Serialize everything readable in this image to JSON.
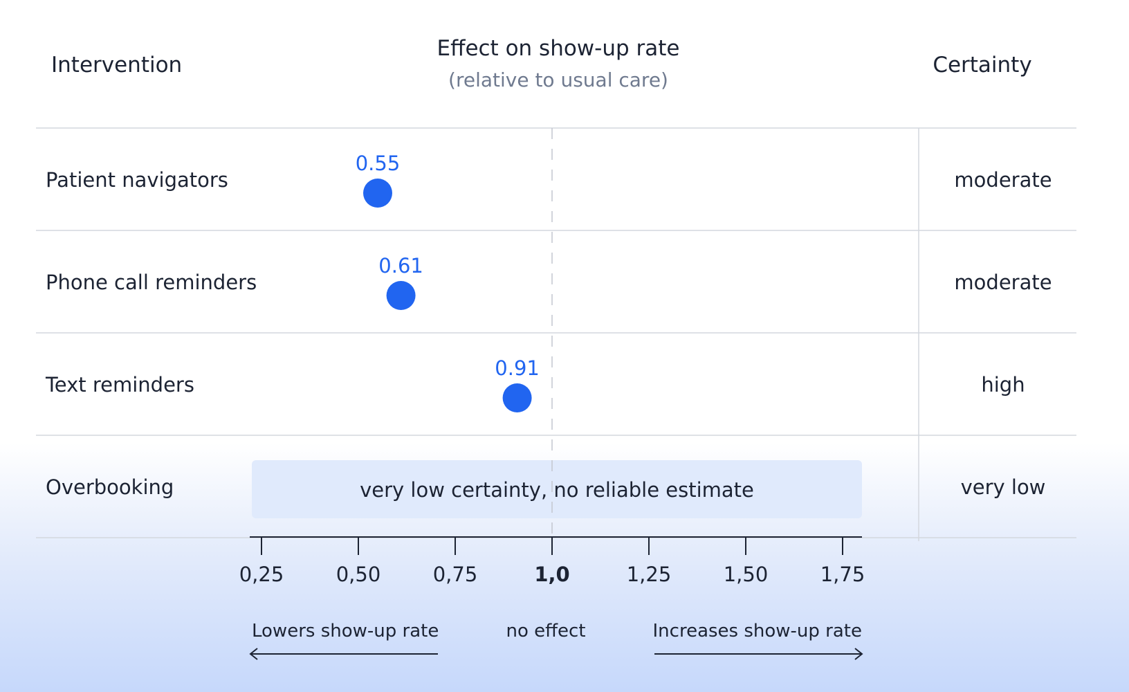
{
  "colors": {
    "text": "#1c2333",
    "muted": "#6f7a8f",
    "accent": "#2165f0",
    "grid": "#d4d7de",
    "band": "#e0eafc"
  },
  "headers": {
    "intervention": "Intervention",
    "effect": "Effect on show-up rate",
    "effect_sub": "(relative to usual care)",
    "certainty": "Certainty"
  },
  "chart_data": {
    "type": "scatter",
    "xlim": [
      0.2,
      1.8
    ],
    "reference_line": 1.0,
    "x_ticks": [
      {
        "value": 0.25,
        "label": "0,25"
      },
      {
        "value": 0.5,
        "label": "0,50"
      },
      {
        "value": 0.75,
        "label": "0,75"
      },
      {
        "value": 1.0,
        "label": "1,0",
        "bold": true
      },
      {
        "value": 1.25,
        "label": "1,25"
      },
      {
        "value": 1.5,
        "label": "1,50"
      },
      {
        "value": 1.75,
        "label": "1,75"
      }
    ],
    "rows": [
      {
        "intervention": "Patient navigators",
        "value": 0.55,
        "value_label": "0.55",
        "certainty": "moderate"
      },
      {
        "intervention": "Phone call reminders",
        "value": 0.61,
        "value_label": "0.61",
        "certainty": "moderate"
      },
      {
        "intervention": "Text reminders",
        "value": 0.91,
        "value_label": "0.91",
        "certainty": "high"
      },
      {
        "intervention": "Overbooking",
        "value": null,
        "band_label": "very low certainty, no reliable estimate",
        "certainty": "very low"
      }
    ],
    "direction_labels": {
      "left": "Lowers show-up rate",
      "center": "no effect",
      "right": "Increases show-up rate"
    }
  }
}
